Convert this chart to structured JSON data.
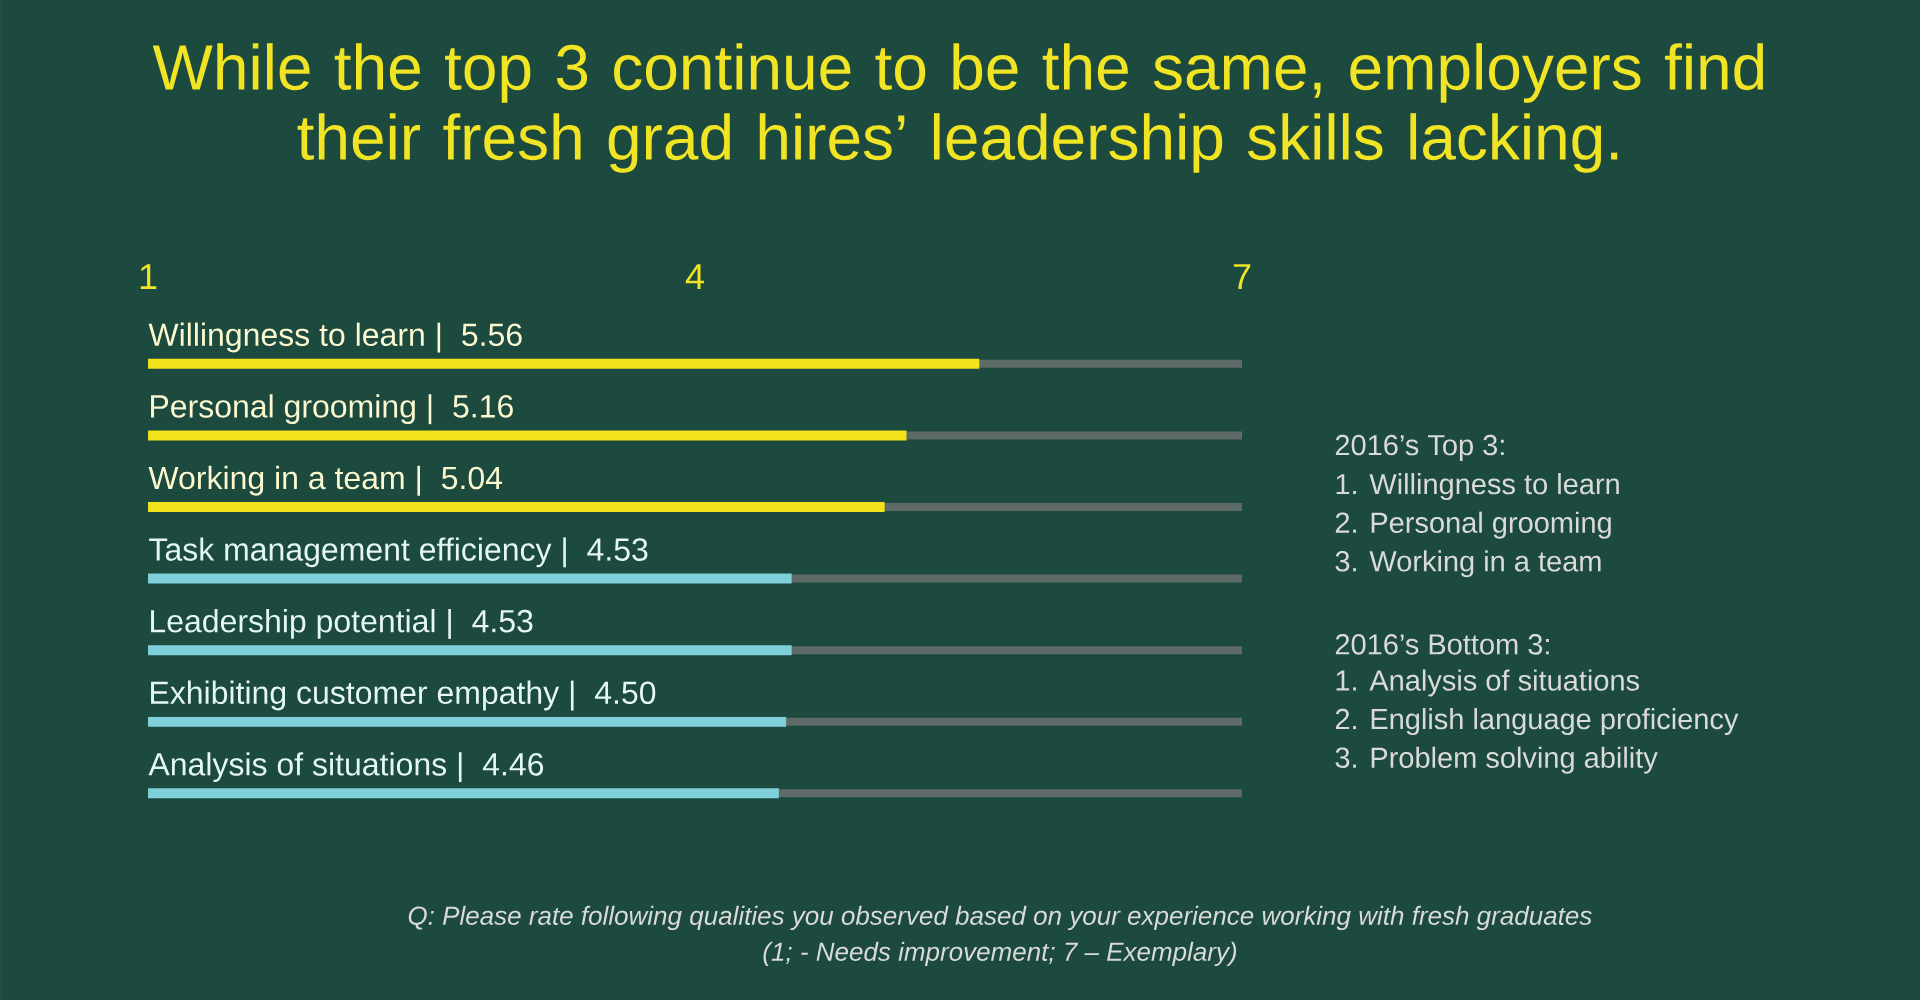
{
  "chart_data": {
    "type": "bar",
    "orientation": "horizontal",
    "title": "While the top 3 continue to be the same, employers find their fresh grad hires’ leadership skills lacking.",
    "categories": [
      "Willingness to learn |",
      "Personal grooming |",
      "Working in a team |",
      "Task management efficiency |",
      "Leadership potential |",
      "Exhibiting customer empathy |",
      "Analysis of situations |"
    ],
    "values": [
      5.56,
      5.16,
      5.04,
      4.53,
      4.53,
      4.5,
      4.46
    ],
    "value_labels": [
      "5.56",
      "5.16",
      "5.04",
      "4.53",
      "4.53",
      "4.50",
      "4.46"
    ],
    "colors": [
      "#f2e31b",
      "#f2e31b",
      "#f2e31b",
      "#7fd0da",
      "#7fd0da",
      "#7fd0da",
      "#7fd0da"
    ],
    "xlim": [
      1,
      7
    ],
    "xticks": [
      1,
      4,
      7
    ],
    "annotations": [
      "2016’s Top 3:",
      "1. Willingness to learn",
      "2. Personal grooming",
      "3. Working in a team",
      "2016’s Bottom 3:",
      "1. Analysis of situations",
      "2. English language proficiency",
      "3. Problem solving ability",
      "Q: Please rate following qualities you observed based on your experience working with fresh graduates",
      "(1; - Needs improvement; 7 – Exemplary)"
    ]
  }
}
